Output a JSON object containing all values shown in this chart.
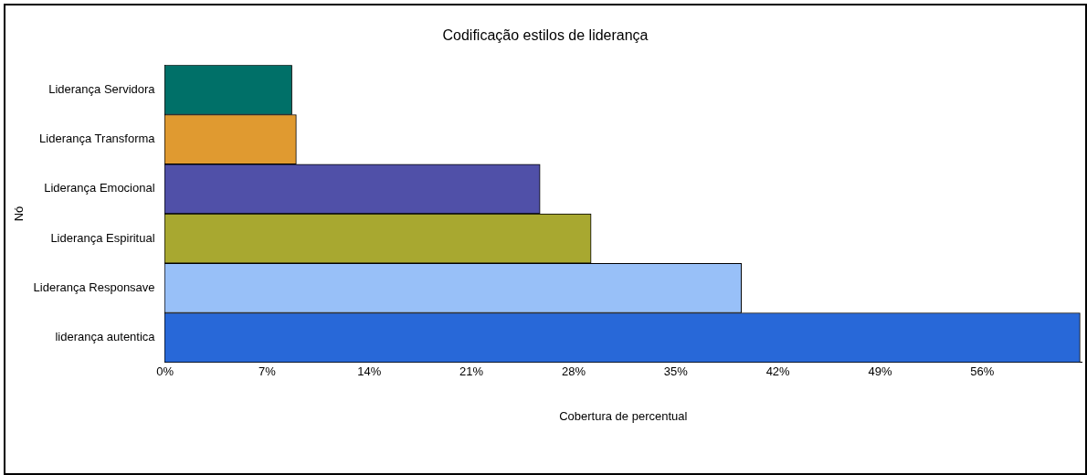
{
  "chart_data": {
    "type": "bar",
    "orientation": "horizontal",
    "title": "Codificação estilos de liderança",
    "xlabel": "Cobertura de percentual",
    "ylabel": "Nó",
    "categories": [
      "Liderança Servidora",
      "Liderança Transforma",
      "Liderança Emocional",
      "Liderança Espiritual",
      "Liderança Responsave",
      "liderança autentica"
    ],
    "values": [
      8.7,
      9.0,
      25.7,
      29.2,
      39.5,
      62.7
    ],
    "colors": [
      "#007068",
      "#e09a30",
      "#5050a8",
      "#a8a830",
      "#98c0f8",
      "#2868d8"
    ],
    "xlim": [
      0,
      62.8
    ],
    "xticks": [
      {
        "value": 0,
        "label": "0%"
      },
      {
        "value": 7,
        "label": "7%"
      },
      {
        "value": 14,
        "label": "14%"
      },
      {
        "value": 21,
        "label": "21%"
      },
      {
        "value": 28,
        "label": "28%"
      },
      {
        "value": 35,
        "label": "35%"
      },
      {
        "value": 42,
        "label": "42%"
      },
      {
        "value": 49,
        "label": "49%"
      },
      {
        "value": 56,
        "label": "56%"
      }
    ],
    "grid": false,
    "legend": false
  }
}
